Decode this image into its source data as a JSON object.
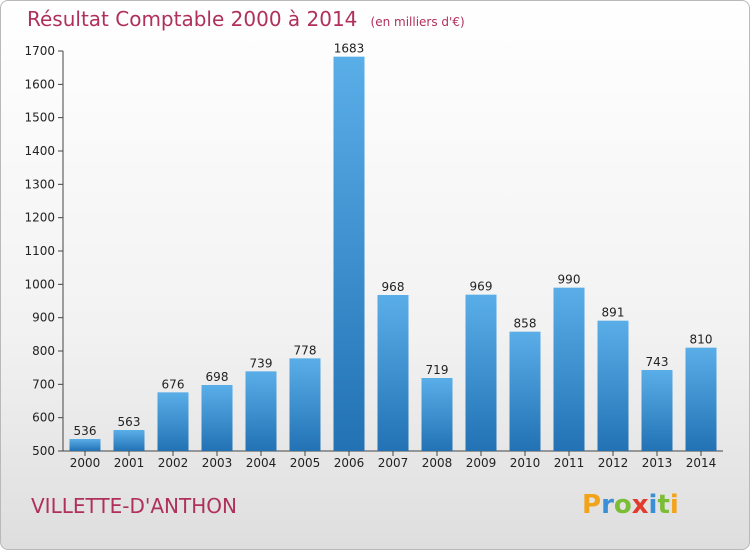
{
  "header": {
    "title": "Résultat Comptable 2000 à 2014",
    "subtitle": "(en milliers d'€)"
  },
  "commune": "VILLETTE-D'ANTHON",
  "logo": {
    "letters": [
      "P",
      "r",
      "o",
      "x",
      "i",
      "t",
      "i"
    ],
    "colors": [
      "#f2a31c",
      "#3a8fd6",
      "#7bbd35",
      "#e23a2c",
      "#3a8fd6",
      "#7bbd35",
      "#f2a31c"
    ]
  },
  "colors": {
    "bar_top": "#5aaee8",
    "bar_bottom": "#2272b4",
    "title": "#b0305c"
  },
  "chart_data": {
    "type": "bar",
    "categories": [
      "2000",
      "2001",
      "2002",
      "2003",
      "2004",
      "2005",
      "2006",
      "2007",
      "2008",
      "2009",
      "2010",
      "2011",
      "2012",
      "2013",
      "2014"
    ],
    "values": [
      536,
      563,
      676,
      698,
      739,
      778,
      1683,
      968,
      719,
      969,
      858,
      990,
      891,
      743,
      810
    ],
    "title": "Résultat Comptable 2000 à 2014",
    "subtitle": "(en milliers d'€)",
    "xlabel": "",
    "ylabel": "",
    "ylim": [
      500,
      1700
    ],
    "yticks": [
      500,
      600,
      700,
      800,
      900,
      1000,
      1100,
      1200,
      1300,
      1400,
      1500,
      1600,
      1700
    ],
    "grid": false,
    "legend": "none"
  }
}
